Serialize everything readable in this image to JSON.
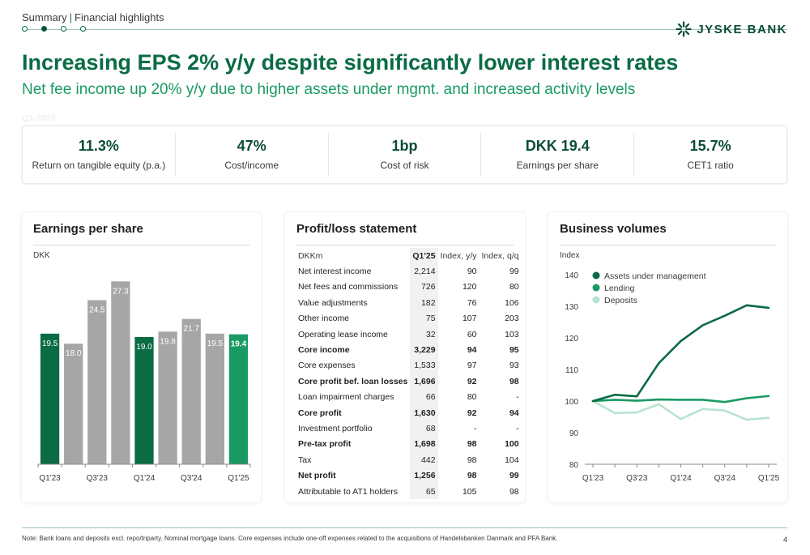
{
  "header": {
    "section": "Summary",
    "subsection": "Financial highlights",
    "logo_text": "JYSKE BANK"
  },
  "headline": "Increasing EPS 2% y/y despite significantly lower interest rates",
  "subheadline": "Net fee income up 20% y/y due to higher assets under mgmt. and increased activity levels",
  "period_label": "Q1 2025",
  "kpis": [
    {
      "value": "11.3%",
      "label": "Return on tangible equity (p.a.)"
    },
    {
      "value": "47%",
      "label": "Cost/income"
    },
    {
      "value": "1bp",
      "label": "Cost of risk"
    },
    {
      "value": "DKK 19.4",
      "label": "Earnings per share"
    },
    {
      "value": "15.7%",
      "label": "CET1 ratio"
    }
  ],
  "eps_panel": {
    "title": "Earnings per share",
    "unit": "DKK"
  },
  "pl_panel": {
    "title": "Profit/loss statement",
    "columns": [
      "DKKm",
      "Q1'25",
      "Index, y/y",
      "Index, q/q"
    ],
    "rows": [
      {
        "label": "Net interest income",
        "q": "2,214",
        "yy": "90",
        "qq": "99",
        "bold": false
      },
      {
        "label": "Net fees and commissions",
        "q": "726",
        "yy": "120",
        "qq": "80",
        "bold": false
      },
      {
        "label": "Value adjustments",
        "q": "182",
        "yy": "76",
        "qq": "106",
        "bold": false
      },
      {
        "label": "Other income",
        "q": "75",
        "yy": "107",
        "qq": "203",
        "bold": false
      },
      {
        "label": "Operating lease income",
        "q": "32",
        "yy": "60",
        "qq": "103",
        "bold": false
      },
      {
        "label": "Core income",
        "q": "3,229",
        "yy": "94",
        "qq": "95",
        "bold": true
      },
      {
        "label": "Core expenses",
        "q": "1,533",
        "yy": "97",
        "qq": "93",
        "bold": false
      },
      {
        "label": "Core profit bef. loan losses",
        "q": "1,696",
        "yy": "92",
        "qq": "98",
        "bold": true
      },
      {
        "label": "Loan impairment charges",
        "q": "66",
        "yy": "80",
        "qq": "-",
        "bold": false
      },
      {
        "label": "Core profit",
        "q": "1,630",
        "yy": "92",
        "qq": "94",
        "bold": true
      },
      {
        "label": "Investment portfolio",
        "q": "68",
        "yy": "-",
        "qq": "-",
        "bold": false
      },
      {
        "label": "Pre-tax profit",
        "q": "1,698",
        "yy": "98",
        "qq": "100",
        "bold": true
      },
      {
        "label": "Tax",
        "q": "442",
        "yy": "98",
        "qq": "104",
        "bold": false
      },
      {
        "label": "Net profit",
        "q": "1,256",
        "yy": "98",
        "qq": "99",
        "bold": true
      },
      {
        "label": "Attributable to AT1 holders",
        "q": "65",
        "yy": "105",
        "qq": "98",
        "bold": false
      }
    ]
  },
  "bv_panel": {
    "title": "Business volumes",
    "unit": "Index"
  },
  "chart_data": [
    {
      "type": "bar",
      "title": "Earnings per share",
      "ylabel": "DKK",
      "categories": [
        "Q1'23",
        "Q2'23",
        "Q3'23",
        "Q4'23",
        "Q1'24",
        "Q2'24",
        "Q3'24",
        "Q4'24",
        "Q1'25"
      ],
      "tick_labels": [
        "Q1'23",
        "",
        "Q3'23",
        "",
        "Q1'24",
        "",
        "Q3'24",
        "",
        "Q1'25"
      ],
      "values": [
        19.5,
        18.0,
        24.5,
        27.3,
        19.0,
        19.8,
        21.7,
        19.5,
        19.4
      ],
      "value_labels": [
        "19.5",
        "18.0",
        "24.5",
        "27.3",
        "19.0",
        "19.8",
        "21.7",
        "19.5",
        "19.4"
      ],
      "colors": [
        "#0a6b45",
        "#a6a6a6",
        "#a6a6a6",
        "#a6a6a6",
        "#0a6b45",
        "#a6a6a6",
        "#a6a6a6",
        "#a6a6a6",
        "#1a9a63"
      ],
      "ylim": [
        0,
        30
      ],
      "grid": false
    },
    {
      "type": "line",
      "title": "Business volumes",
      "ylabel": "Index",
      "x": [
        "Q1'23",
        "Q2'23",
        "Q3'23",
        "Q4'23",
        "Q1'24",
        "Q2'24",
        "Q3'24",
        "Q4'24",
        "Q1'25"
      ],
      "tick_labels": [
        "Q1'23",
        "",
        "Q3'23",
        "",
        "Q1'24",
        "",
        "Q3'24",
        "",
        "Q1'25"
      ],
      "ylim": [
        80,
        140
      ],
      "yticks": [
        80,
        90,
        100,
        110,
        120,
        130,
        140
      ],
      "grid": false,
      "legend": "top-left",
      "series": [
        {
          "name": "Assets under management",
          "color": "#0a6b45",
          "values": [
            100,
            102,
            101.5,
            112,
            119,
            124,
            127,
            130.3,
            129.5
          ]
        },
        {
          "name": "Lending",
          "color": "#1a9a63",
          "values": [
            100,
            100.4,
            100.1,
            100.5,
            100.4,
            100.4,
            99.7,
            100.9,
            101.6
          ]
        },
        {
          "name": "Deposits",
          "color": "#b9e3cf",
          "values": [
            100,
            96.2,
            96.4,
            99,
            94.3,
            97.5,
            97,
            94.1,
            94.7
          ]
        }
      ]
    }
  ],
  "footnote": "Note: Bank loans and deposits excl. repo/triparty. Nominal mortgage loans. Core expenses include one-off expenses related to the acquisitions of Handelsbanken Danmark and PFA Bank.",
  "page_number": "4"
}
